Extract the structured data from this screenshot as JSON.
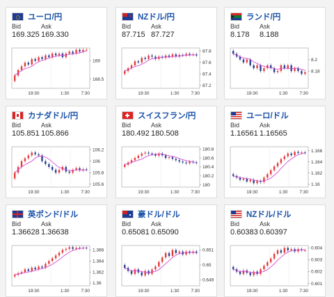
{
  "labels": {
    "bid": "Bid",
    "ask": "Ask"
  },
  "colors": {
    "up": "#e23b3b",
    "down": "#2a3f8f",
    "ma": "#d34bd3",
    "title": "#1a52a8"
  },
  "cards": [
    {
      "title": "ユーロ/円",
      "flag": "eu-flag",
      "bid": "169.325",
      "ask": "169.330",
      "yticks": [
        "169",
        "168.5"
      ],
      "ytick_vals": [
        169,
        168.5
      ],
      "ymin": 168.25,
      "ymax": 169.35,
      "xticks": [
        "19:30",
        "1:30",
        "7:30"
      ],
      "close": [
        168.6,
        168.75,
        168.85,
        168.95,
        168.9,
        169.05,
        169.0,
        169.1,
        169.05,
        169.15,
        169.1,
        169.2,
        169.15,
        169.2,
        169.1,
        169.2,
        169.25,
        169.2,
        169.3,
        169.25,
        169.3,
        169.3
      ]
    },
    {
      "title": "NZドル/円",
      "flag": "nz-flag",
      "bid": "87.715",
      "ask": "87.727",
      "yticks": [
        "87.8",
        "87.6",
        "87.4",
        "87.2"
      ],
      "ytick_vals": [
        87.8,
        87.6,
        87.4,
        87.2
      ],
      "ymin": 87.15,
      "ymax": 87.85,
      "xticks": [
        "19:30",
        "1:30",
        "7:30"
      ],
      "close": [
        87.45,
        87.5,
        87.55,
        87.62,
        87.6,
        87.68,
        87.66,
        87.72,
        87.7,
        87.66,
        87.7,
        87.68,
        87.72,
        87.7,
        87.74,
        87.7,
        87.73,
        87.72,
        87.75,
        87.73,
        87.74,
        87.72
      ]
    },
    {
      "title": "ランド/円",
      "flag": "za-flag",
      "bid": "8.178",
      "ask": "8.188",
      "yticks": [
        "8.2",
        "8.18"
      ],
      "ytick_vals": [
        8.2,
        8.18
      ],
      "ymin": 8.15,
      "ymax": 8.22,
      "xticks": [
        "19:30",
        "1:30",
        "7:30"
      ],
      "close": [
        8.21,
        8.205,
        8.2,
        8.195,
        8.2,
        8.19,
        8.185,
        8.19,
        8.18,
        8.185,
        8.19,
        8.185,
        8.178,
        8.18,
        8.19,
        8.185,
        8.19,
        8.18,
        8.185,
        8.18,
        8.175,
        8.178
      ]
    },
    {
      "title": "カナダドル/円",
      "flag": "ca-flag",
      "bid": "105.851",
      "ask": "105.866",
      "yticks": [
        "106.2",
        "106",
        "105.8",
        "105.6"
      ],
      "ytick_vals": [
        106.2,
        106,
        105.8,
        105.6
      ],
      "ymin": 105.55,
      "ymax": 106.25,
      "xticks": [
        "19:30",
        "1:30",
        "7:30"
      ],
      "close": [
        105.8,
        105.9,
        106.0,
        106.05,
        106.1,
        106.15,
        106.12,
        106.1,
        106.0,
        105.95,
        105.9,
        105.85,
        105.8,
        105.85,
        105.9,
        105.82,
        105.8,
        105.85,
        105.88,
        105.84,
        105.86,
        105.85
      ]
    },
    {
      "title": "スイスフラン/円",
      "flag": "ch-flag",
      "bid": "180.492",
      "ask": "180.508",
      "yticks": [
        "180.8",
        "180.6",
        "180.4",
        "180.2",
        "180"
      ],
      "ytick_vals": [
        180.8,
        180.6,
        180.4,
        180.2,
        180
      ],
      "ymin": 179.95,
      "ymax": 180.85,
      "xticks": [
        "19:30",
        "1:30",
        "7:30"
      ],
      "close": [
        180.45,
        180.5,
        180.55,
        180.6,
        180.65,
        180.7,
        180.72,
        180.7,
        180.68,
        180.65,
        180.7,
        180.66,
        180.6,
        180.62,
        180.58,
        180.55,
        180.52,
        180.5,
        180.48,
        180.52,
        180.5,
        180.49
      ]
    },
    {
      "title": "ユーロ/ドル",
      "flag": "us-flag",
      "bid": "1.16561",
      "ask": "1.16565",
      "yticks": [
        "1.166",
        "1.164",
        "1.162",
        "1.16"
      ],
      "ytick_vals": [
        1.166,
        1.164,
        1.162,
        1.16
      ],
      "ymin": 1.1595,
      "ymax": 1.1667,
      "xticks": [
        "19:30",
        "1:30",
        "7:30"
      ],
      "close": [
        1.1615,
        1.1612,
        1.1608,
        1.161,
        1.1605,
        1.1608,
        1.1602,
        1.1606,
        1.1604,
        1.1612,
        1.1618,
        1.1625,
        1.1632,
        1.1638,
        1.1645,
        1.165,
        1.1655,
        1.1652,
        1.1658,
        1.1656,
        1.1657,
        1.1656
      ]
    },
    {
      "title": "英ポンド/ドル",
      "flag": "gb-flag",
      "bid": "1.36628",
      "ask": "1.36638",
      "yticks": [
        "1.366",
        "1.364",
        "1.362",
        "1.36"
      ],
      "ytick_vals": [
        1.366,
        1.364,
        1.362,
        1.36
      ],
      "ymin": 1.3595,
      "ymax": 1.3668,
      "xticks": [
        "19:30",
        "1:30",
        "7:30"
      ],
      "close": [
        1.3615,
        1.3618,
        1.362,
        1.3625,
        1.3622,
        1.3628,
        1.3625,
        1.363,
        1.3628,
        1.3635,
        1.364,
        1.3645,
        1.365,
        1.3655,
        1.366,
        1.3662,
        1.3665,
        1.3662,
        1.3664,
        1.3663,
        1.3664,
        1.3663
      ]
    },
    {
      "title": "豪ドル/ドル",
      "flag": "au-flag",
      "bid": "0.65081",
      "ask": "0.65090",
      "yticks": [
        "0.651",
        "0.65",
        "0.649"
      ],
      "ytick_vals": [
        0.651,
        0.65,
        0.649
      ],
      "ymin": 0.6486,
      "ymax": 0.6513,
      "xticks": [
        "19:30",
        "1:30",
        "7:30"
      ],
      "close": [
        0.6498,
        0.6496,
        0.6494,
        0.6497,
        0.6495,
        0.6493,
        0.6496,
        0.6494,
        0.6497,
        0.6499,
        0.6502,
        0.6505,
        0.6508,
        0.6506,
        0.651,
        0.6508,
        0.6509,
        0.6507,
        0.6509,
        0.6508,
        0.6509,
        0.6508
      ]
    },
    {
      "title": "NZドル/ドル",
      "flag": "us-flag",
      "bid": "0.60383",
      "ask": "0.60397",
      "yticks": [
        "0.604",
        "0.603",
        "0.602",
        "0.601"
      ],
      "ytick_vals": [
        0.604,
        0.603,
        0.602,
        0.601
      ],
      "ymin": 0.6008,
      "ymax": 0.6042,
      "xticks": [
        "19:30",
        "1:30",
        "7:30"
      ],
      "close": [
        0.6022,
        0.602,
        0.6018,
        0.6021,
        0.6019,
        0.6017,
        0.602,
        0.6018,
        0.6022,
        0.6025,
        0.6028,
        0.6031,
        0.6035,
        0.6038,
        0.6036,
        0.604,
        0.6038,
        0.6039,
        0.6037,
        0.6039,
        0.6038,
        0.6038
      ]
    }
  ]
}
